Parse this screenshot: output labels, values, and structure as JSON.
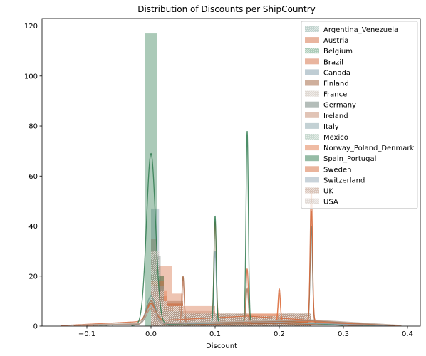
{
  "chart_data": {
    "type": "histogram",
    "title": "Distribution of Discounts per ShipCountry",
    "xlabel": "Discount",
    "ylabel": "",
    "xlim": [
      -0.17,
      0.42
    ],
    "ylim": [
      0,
      123
    ],
    "xticks": [
      -0.1,
      0.0,
      0.1,
      0.2,
      0.3,
      0.4
    ],
    "xtick_labels": [
      "−0.1",
      "0.0",
      "0.1",
      "0.2",
      "0.3",
      "0.4"
    ],
    "yticks": [
      0,
      20,
      40,
      60,
      80,
      100,
      120
    ],
    "ytick_labels": [
      "0",
      "20",
      "40",
      "60",
      "80",
      "100",
      "120"
    ],
    "grid": false,
    "legend_position": "top-right",
    "bar_alpha": 0.4,
    "series": [
      {
        "name": "Argentina_Venezuela",
        "color": "#6e9a8f",
        "hatch": true,
        "bins": [
          [
            0.0,
            0.0125,
            20
          ],
          [
            0.0125,
            0.025,
            5
          ],
          [
            0.025,
            0.05,
            3
          ],
          [
            0.05,
            0.1,
            2
          ],
          [
            0.1,
            0.15,
            2
          ],
          [
            0.15,
            0.2,
            2
          ],
          [
            0.2,
            0.25,
            2
          ]
        ],
        "kde": {
          "peaks": [
            [
              0.0,
              12
            ]
          ],
          "baseline": [
            [
              -0.06,
              0.5
            ],
            [
              0.25,
              2
            ],
            [
              0.38,
              0.3
            ]
          ]
        }
      },
      {
        "name": "Austria",
        "color": "#d46b3f",
        "hatch": false,
        "bins": [
          [
            0.0,
            0.0167,
            24
          ],
          [
            0.0167,
            0.0333,
            24
          ],
          [
            0.0333,
            0.05,
            13
          ],
          [
            0.05,
            0.1,
            8
          ],
          [
            0.1,
            0.15,
            5
          ],
          [
            0.15,
            0.2,
            5
          ],
          [
            0.2,
            0.25,
            5
          ]
        ],
        "kde": {
          "peaks": [
            [
              0.0,
              9
            ],
            [
              0.1,
              42
            ],
            [
              0.25,
              46
            ]
          ],
          "baseline": [
            [
              -0.14,
              0.2
            ],
            [
              0.15,
              4
            ],
            [
              0.38,
              0.2
            ]
          ]
        }
      },
      {
        "name": "Belgium",
        "color": "#3e8a5e",
        "hatch": true,
        "bins": [
          [
            0.0,
            0.015,
            10
          ],
          [
            0.015,
            0.03,
            4
          ],
          [
            0.03,
            0.06,
            4
          ],
          [
            0.06,
            0.15,
            3
          ]
        ],
        "kde": {
          "peaks": [
            [
              0.0,
              9
            ]
          ],
          "baseline": [
            [
              -0.08,
              0.4
            ],
            [
              0.2,
              2
            ],
            [
              0.35,
              0.2
            ]
          ]
        }
      },
      {
        "name": "Brazil",
        "color": "#d46b3f",
        "hatch": false,
        "bins": [
          [
            0.0,
            0.01,
            35
          ],
          [
            0.01,
            0.025,
            12
          ],
          [
            0.025,
            0.05,
            9
          ],
          [
            0.05,
            0.1,
            5
          ],
          [
            0.1,
            0.15,
            5
          ],
          [
            0.15,
            0.2,
            4
          ],
          [
            0.2,
            0.25,
            5
          ]
        ],
        "kde": {
          "peaks": [
            [
              0.0,
              10
            ],
            [
              0.15,
              23
            ],
            [
              0.2,
              15
            ]
          ],
          "baseline": [
            [
              -0.1,
              0.4
            ],
            [
              0.3,
              1.5
            ],
            [
              0.39,
              0.2
            ]
          ]
        }
      },
      {
        "name": "Canada",
        "color": "#7f9caa",
        "hatch": false,
        "bins": [
          [
            0.0,
            0.0125,
            47
          ],
          [
            0.0125,
            0.025,
            10
          ],
          [
            0.025,
            0.05,
            6
          ],
          [
            0.05,
            0.1,
            4
          ],
          [
            0.1,
            0.15,
            4
          ],
          [
            0.15,
            0.25,
            3
          ]
        ],
        "kde": {
          "peaks": [
            [
              0.0,
              8
            ]
          ],
          "baseline": [
            [
              -0.07,
              0.5
            ],
            [
              0.2,
              1.5
            ],
            [
              0.36,
              0.2
            ]
          ]
        }
      },
      {
        "name": "Finland",
        "color": "#a0603a",
        "hatch": false,
        "bins": [
          [
            0.0,
            0.02,
            20
          ],
          [
            0.02,
            0.05,
            10
          ],
          [
            0.05,
            0.1,
            3
          ],
          [
            0.1,
            0.2,
            2
          ]
        ],
        "kde": {
          "peaks": [
            [
              0.0,
              10
            ],
            [
              0.05,
              20
            ]
          ],
          "baseline": [
            [
              -0.09,
              0.4
            ],
            [
              0.2,
              1
            ],
            [
              0.33,
              0.2
            ]
          ]
        }
      },
      {
        "name": "France",
        "color": "#b9a99b",
        "hatch": true,
        "bins": [
          [
            0.0,
            0.02,
            15
          ],
          [
            0.02,
            0.05,
            6
          ],
          [
            0.05,
            0.1,
            4
          ],
          [
            0.1,
            0.15,
            4
          ],
          [
            0.15,
            0.25,
            3
          ]
        ],
        "kde": {
          "peaks": [
            [
              0.0,
              8
            ]
          ],
          "baseline": [
            [
              -0.1,
              0.5
            ],
            [
              0.2,
              2
            ],
            [
              0.36,
              0.2
            ]
          ]
        }
      },
      {
        "name": "Germany",
        "color": "#6a7b73",
        "hatch": false,
        "bins": [
          [
            0.0,
            0.015,
            28
          ],
          [
            0.015,
            0.03,
            8
          ],
          [
            0.03,
            0.05,
            6
          ],
          [
            0.05,
            0.1,
            5
          ],
          [
            0.1,
            0.15,
            5
          ],
          [
            0.15,
            0.2,
            4
          ],
          [
            0.2,
            0.25,
            5
          ]
        ],
        "kde": {
          "peaks": [
            [
              0.0,
              9
            ],
            [
              0.25,
              40
            ]
          ],
          "baseline": [
            [
              -0.1,
              0.5
            ],
            [
              0.2,
              2
            ],
            [
              0.38,
              0.2
            ]
          ]
        }
      },
      {
        "name": "Ireland",
        "color": "#c4896e",
        "hatch": false,
        "bins": [
          [
            0.0,
            0.02,
            16
          ],
          [
            0.02,
            0.05,
            8
          ],
          [
            0.05,
            0.1,
            6
          ],
          [
            0.1,
            0.15,
            4
          ],
          [
            0.15,
            0.25,
            3
          ]
        ],
        "kde": {
          "peaks": [
            [
              0.0,
              7
            ],
            [
              0.05,
              18
            ]
          ],
          "baseline": [
            [
              -0.08,
              0.4
            ],
            [
              0.25,
              2
            ],
            [
              0.37,
              0.2
            ]
          ]
        }
      },
      {
        "name": "Italy",
        "color": "#87a3a9",
        "hatch": false,
        "bins": [
          [
            0.0,
            0.02,
            10
          ],
          [
            0.02,
            0.05,
            5
          ],
          [
            0.05,
            0.1,
            4
          ],
          [
            0.1,
            0.2,
            3
          ]
        ],
        "kde": {
          "peaks": [
            [
              0.0,
              8
            ],
            [
              0.1,
              30
            ]
          ],
          "baseline": [
            [
              -0.09,
              0.4
            ],
            [
              0.2,
              1.5
            ],
            [
              0.34,
              0.2
            ]
          ]
        }
      },
      {
        "name": "Mexico",
        "color": "#84a895",
        "hatch": true,
        "bins": [
          [
            0.0,
            0.0125,
            22
          ],
          [
            0.0125,
            0.025,
            8
          ],
          [
            0.025,
            0.05,
            5
          ],
          [
            0.05,
            0.1,
            3
          ],
          [
            0.1,
            0.2,
            3
          ]
        ],
        "kde": {
          "peaks": [
            [
              0.0,
              10
            ]
          ],
          "baseline": [
            [
              -0.08,
              0.4
            ],
            [
              0.2,
              1.5
            ],
            [
              0.35,
              0.2
            ]
          ]
        }
      },
      {
        "name": "Norway_Poland_Denmark",
        "color": "#e07848",
        "hatch": false,
        "bins": [
          [
            0.0,
            0.025,
            14
          ],
          [
            0.025,
            0.05,
            6
          ],
          [
            0.05,
            0.1,
            5
          ],
          [
            0.1,
            0.15,
            4
          ],
          [
            0.15,
            0.2,
            5
          ]
        ],
        "kde": {
          "peaks": [
            [
              0.0,
              9
            ],
            [
              0.2,
              13
            ]
          ],
          "baseline": [
            [
              -0.12,
              0.3
            ],
            [
              0.25,
              1.8
            ],
            [
              0.39,
              0.2
            ]
          ]
        }
      },
      {
        "name": "Spain_Portugal",
        "color": "#2e7a4e",
        "hatch": false,
        "bins": [
          [
            -0.01,
            0.01,
            117
          ],
          [
            0.01,
            0.02,
            20
          ],
          [
            0.02,
            0.05,
            6
          ],
          [
            0.05,
            0.1,
            4
          ],
          [
            0.1,
            0.15,
            4
          ],
          [
            0.15,
            0.2,
            3
          ],
          [
            0.2,
            0.25,
            3
          ]
        ],
        "kde": {
          "peaks": [
            [
              0.0,
              69
            ],
            [
              0.1,
              44
            ],
            [
              0.15,
              78
            ]
          ],
          "baseline": [
            [
              -0.03,
              0.3
            ],
            [
              0.2,
              2
            ],
            [
              0.3,
              0.3
            ]
          ]
        }
      },
      {
        "name": "Sweden",
        "color": "#d66a3a",
        "hatch": false,
        "bins": [
          [
            0.0,
            0.02,
            18
          ],
          [
            0.02,
            0.05,
            9
          ],
          [
            0.05,
            0.1,
            5
          ],
          [
            0.1,
            0.15,
            4
          ],
          [
            0.15,
            0.2,
            4
          ],
          [
            0.2,
            0.25,
            4
          ]
        ],
        "kde": {
          "peaks": [
            [
              0.0,
              9
            ],
            [
              0.25,
              55
            ]
          ],
          "baseline": [
            [
              -0.1,
              0.4
            ],
            [
              0.2,
              1.8
            ],
            [
              0.38,
              0.2
            ]
          ]
        }
      },
      {
        "name": "Switzerland",
        "color": "#94a8b6",
        "hatch": false,
        "bins": [
          [
            0.0,
            0.02,
            16
          ],
          [
            0.02,
            0.05,
            6
          ],
          [
            0.05,
            0.1,
            5
          ],
          [
            0.1,
            0.15,
            4
          ],
          [
            0.15,
            0.25,
            3
          ]
        ],
        "kde": {
          "peaks": [
            [
              0.0,
              8
            ]
          ],
          "baseline": [
            [
              -0.1,
              0.5
            ],
            [
              0.2,
              1.5
            ],
            [
              0.37,
              0.2
            ]
          ]
        }
      },
      {
        "name": "UK",
        "color": "#a87a60",
        "hatch": true,
        "bins": [
          [
            0.0,
            0.02,
            14
          ],
          [
            0.02,
            0.05,
            8
          ],
          [
            0.05,
            0.1,
            5
          ],
          [
            0.1,
            0.15,
            4
          ],
          [
            0.15,
            0.2,
            4
          ],
          [
            0.2,
            0.25,
            4
          ]
        ],
        "kde": {
          "peaks": [
            [
              0.0,
              10
            ],
            [
              0.15,
              15
            ]
          ],
          "baseline": [
            [
              -0.1,
              0.5
            ],
            [
              0.25,
              2.2
            ],
            [
              0.38,
              0.2
            ]
          ]
        }
      },
      {
        "name": "USA",
        "color": "#bfb0a4",
        "hatch": true,
        "bins": [
          [
            0.0,
            0.0125,
            30
          ],
          [
            0.0125,
            0.025,
            10
          ],
          [
            0.025,
            0.05,
            8
          ],
          [
            0.05,
            0.1,
            5
          ],
          [
            0.1,
            0.15,
            5
          ],
          [
            0.15,
            0.2,
            4
          ],
          [
            0.2,
            0.25,
            5
          ]
        ],
        "kde": {
          "peaks": [
            [
              0.0,
              8
            ]
          ],
          "baseline": [
            [
              -0.11,
              0.5
            ],
            [
              0.25,
              2.5
            ],
            [
              0.39,
              0.3
            ]
          ]
        }
      }
    ]
  }
}
